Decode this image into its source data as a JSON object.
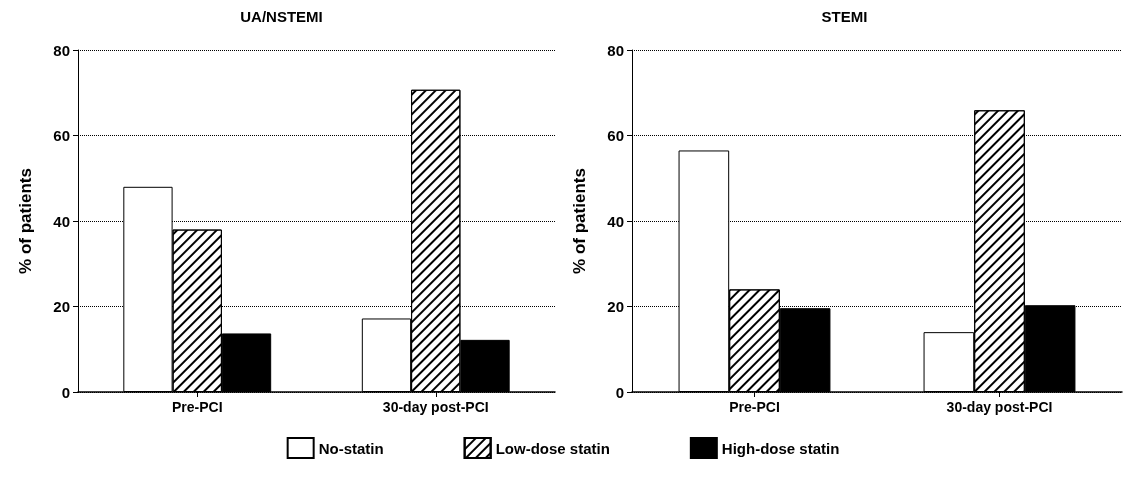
{
  "chart_data": [
    {
      "type": "bar",
      "title": "UA/NSTEMI",
      "ylabel": "% of patients",
      "categories": [
        "Pre-PCI",
        "30-day post-PCI"
      ],
      "ylim": [
        0,
        80
      ],
      "yticks": [
        0,
        20,
        40,
        60,
        80
      ],
      "grid": "y",
      "legend": "bottom",
      "series": [
        {
          "name": "No-statin",
          "color": "#ffffff",
          "values": [
            48,
            17.2
          ]
        },
        {
          "name": "Low-dose statin",
          "color": "#ffffff",
          "values": [
            38,
            70.7
          ]
        },
        {
          "name": "High-dose statin",
          "color": "#000000",
          "values": [
            13.7,
            12.2
          ]
        }
      ]
    },
    {
      "type": "bar",
      "title": "STEMI",
      "ylabel": "% of patients",
      "categories": [
        "Pre-PCI",
        "30-day post-PCI"
      ],
      "ylim": [
        0,
        80
      ],
      "yticks": [
        0,
        20,
        40,
        60,
        80
      ],
      "grid": "y",
      "legend": "bottom",
      "series": [
        {
          "name": "No-statin",
          "color": "#ffffff",
          "values": [
            56.5,
            14
          ]
        },
        {
          "name": "Low-dose statin",
          "color": "#ffffff",
          "values": [
            24,
            65.9
          ]
        },
        {
          "name": "High-dose statin",
          "color": "#000000",
          "values": [
            19.6,
            20.3
          ]
        }
      ]
    }
  ]
}
